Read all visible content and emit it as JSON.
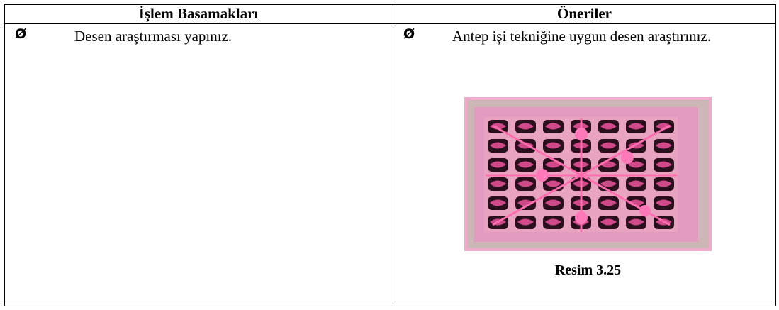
{
  "table": {
    "header": [
      "İşlem Basamakları",
      "Öneriler"
    ],
    "rows": [
      [
        {
          "bullet": "Ø",
          "text": "Desen araştırması yapınız."
        },
        {
          "bullet": "Ø",
          "text": "Antep işi tekniğine uygun desen araştırınız.",
          "figure_caption": "Resim 3.25"
        }
      ]
    ]
  }
}
